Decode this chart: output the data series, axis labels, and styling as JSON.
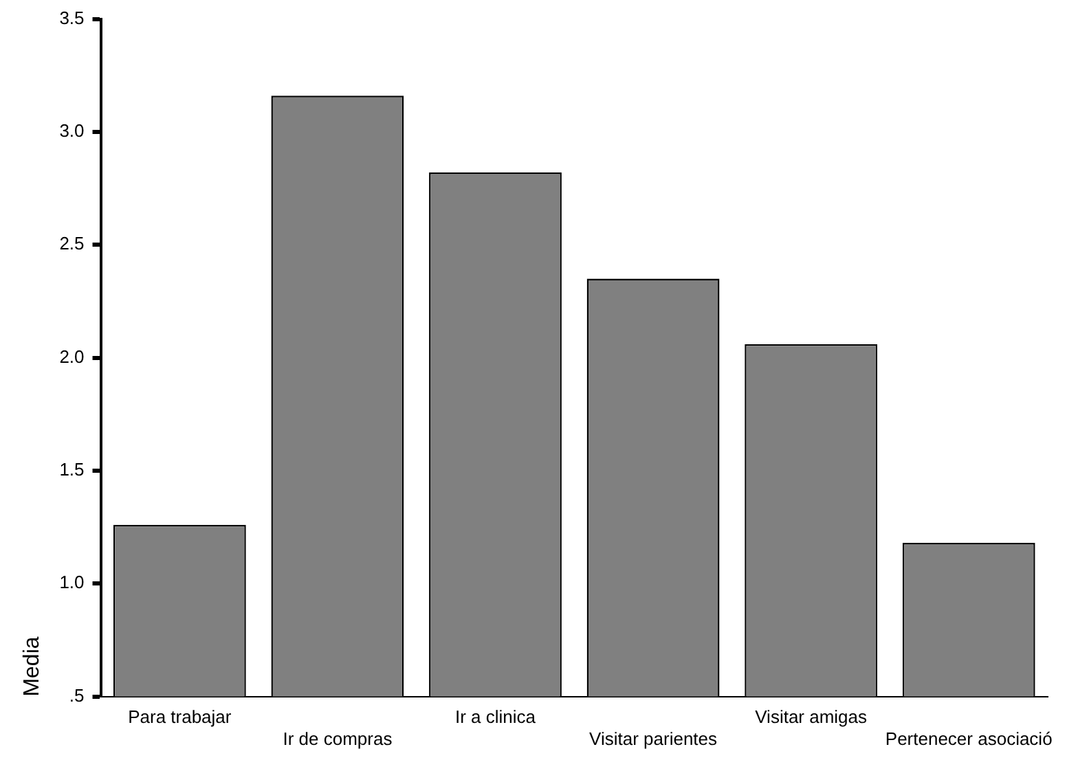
{
  "chart_data": {
    "type": "bar",
    "ylabel": "Media",
    "categories": [
      "Para trabajar",
      "Ir de compras",
      "Ir a clinica",
      "Visitar parientes",
      "Visitar amigas",
      "Pertenecer asociació"
    ],
    "values": [
      1.26,
      3.16,
      2.82,
      2.35,
      2.06,
      1.18
    ],
    "color": "#808080",
    "ylim": [
      0.5,
      3.5
    ],
    "yticks": [
      {
        "value": 0.5,
        "label": ".5"
      },
      {
        "value": 1,
        "label": "1.0"
      },
      {
        "value": 1.5,
        "label": "1.5"
      },
      {
        "value": 2,
        "label": "2.0"
      },
      {
        "value": 2.5,
        "label": "2.5"
      },
      {
        "value": 3,
        "label": "3.0"
      },
      {
        "value": 3.5,
        "label": "3.5"
      }
    ],
    "grid": false,
    "legend": false
  }
}
